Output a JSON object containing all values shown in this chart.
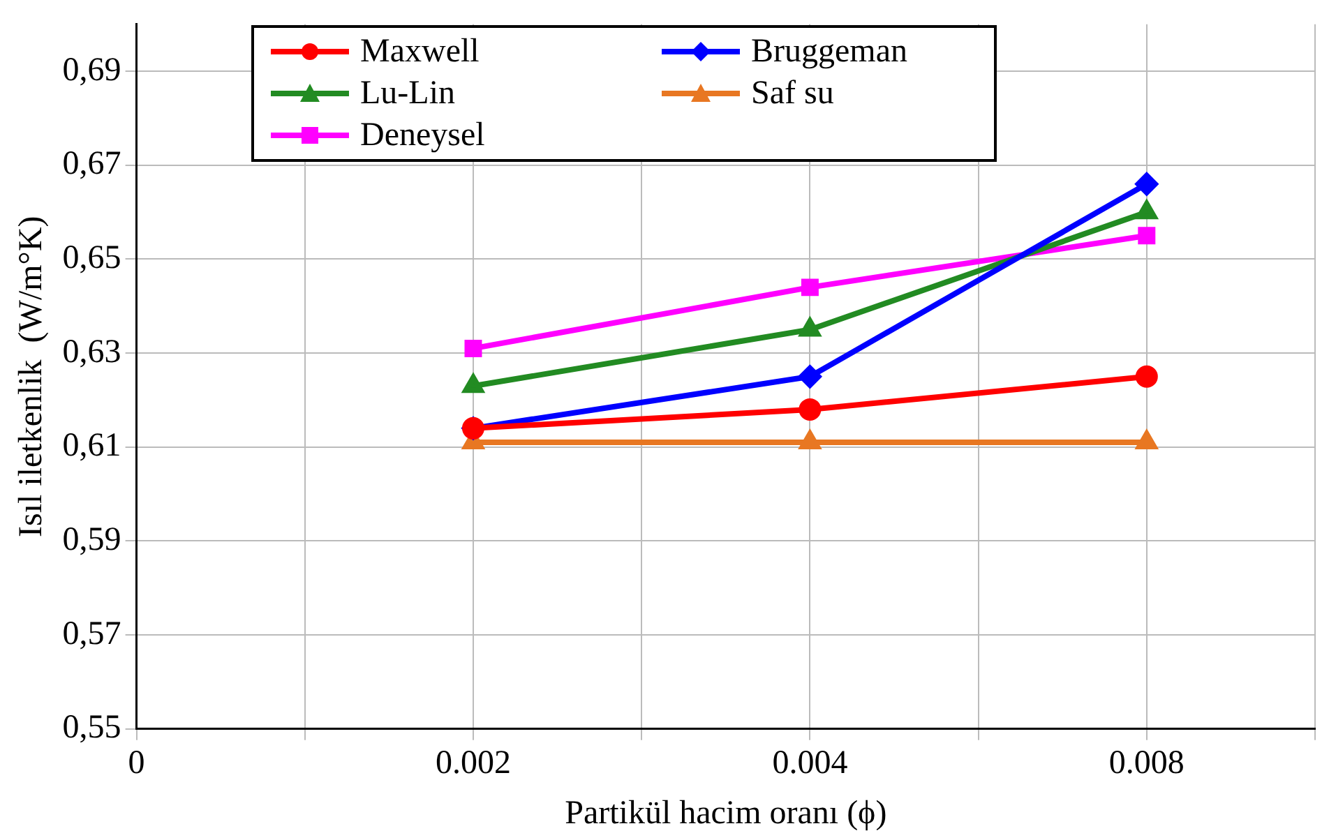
{
  "chart_data": {
    "type": "line",
    "xlabel": "Partikül hacim oranı (ϕ)",
    "ylabel": "Isıl iletkenlik  (W/m°K)",
    "categories": [
      "0",
      null,
      "0.002",
      null,
      "0.004",
      null,
      "0.008",
      null
    ],
    "series": [
      {
        "name": "Maxwell",
        "color": "#ff0000",
        "marker": "circle",
        "values": [
          null,
          null,
          0.614,
          null,
          0.618,
          null,
          0.625,
          null
        ]
      },
      {
        "name": "Bruggeman",
        "color": "#0000ff",
        "marker": "diamond",
        "values": [
          null,
          null,
          0.614,
          null,
          0.625,
          null,
          0.666,
          null
        ]
      },
      {
        "name": "Lu-Lin",
        "color": "#228b22",
        "marker": "triangle",
        "values": [
          null,
          null,
          0.623,
          null,
          0.635,
          null,
          0.66,
          null
        ]
      },
      {
        "name": "Saf su",
        "color": "#e87722",
        "marker": "triangle",
        "values": [
          null,
          null,
          0.611,
          null,
          0.611,
          null,
          0.611,
          null
        ]
      },
      {
        "name": "Deneysel",
        "color": "#ff00ff",
        "marker": "square",
        "values": [
          null,
          null,
          0.631,
          null,
          0.644,
          null,
          0.655,
          null
        ]
      }
    ],
    "ylim": [
      0.55,
      0.7
    ],
    "yticks": [
      {
        "value": 0.55,
        "label": "0,55"
      },
      {
        "value": 0.57,
        "label": "0,57"
      },
      {
        "value": 0.59,
        "label": "0,59"
      },
      {
        "value": 0.61,
        "label": "0,61"
      },
      {
        "value": 0.63,
        "label": "0,63"
      },
      {
        "value": 0.65,
        "label": "0,65"
      },
      {
        "value": 0.67,
        "label": "0,67"
      },
      {
        "value": 0.69,
        "label": "0,69"
      }
    ],
    "grid": true,
    "legend": "top left",
    "line_style": "solid"
  }
}
